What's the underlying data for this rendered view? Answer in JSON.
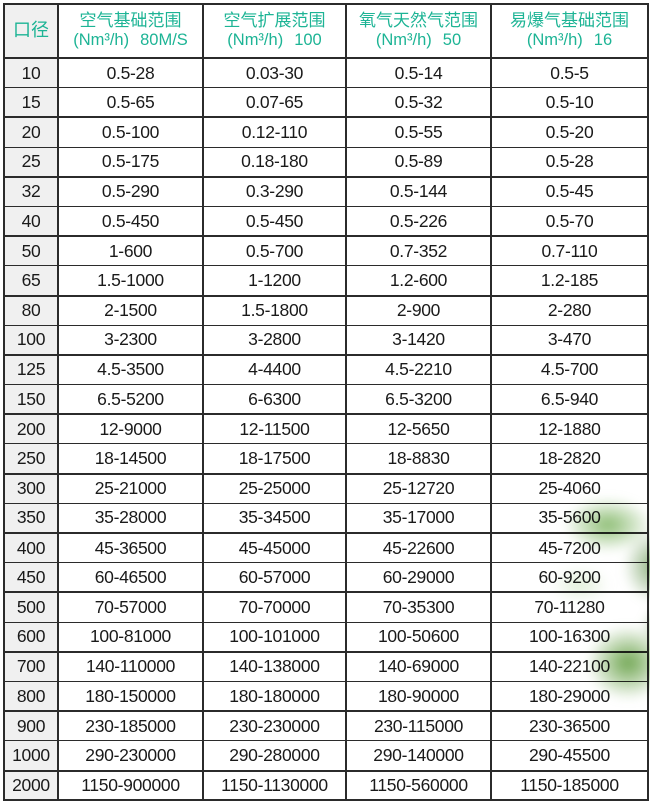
{
  "table": {
    "diameter_header": "口径",
    "columns": [
      {
        "title": "空气基础范围",
        "unit": "(Nm³/h)",
        "value": "80M/S"
      },
      {
        "title": "空气扩展范围",
        "unit": "(Nm³/h)",
        "value": "100"
      },
      {
        "title": "氧气天然气范围",
        "unit": "(Nm³/h)",
        "value": "50"
      },
      {
        "title": "易爆气基础范围",
        "unit": "(Nm³/h)",
        "value": "16"
      }
    ],
    "rows": [
      {
        "diameter": "10",
        "values": [
          "0.5-28",
          "0.03-30",
          "0.5-14",
          "0.5-5"
        ]
      },
      {
        "diameter": "15",
        "values": [
          "0.5-65",
          "0.07-65",
          "0.5-32",
          "0.5-10"
        ]
      },
      {
        "diameter": "20",
        "values": [
          "0.5-100",
          "0.12-110",
          "0.5-55",
          "0.5-20"
        ]
      },
      {
        "diameter": "25",
        "values": [
          "0.5-175",
          "0.18-180",
          "0.5-89",
          "0.5-28"
        ]
      },
      {
        "diameter": "32",
        "values": [
          "0.5-290",
          "0.3-290",
          "0.5-144",
          "0.5-45"
        ]
      },
      {
        "diameter": "40",
        "values": [
          "0.5-450",
          "0.5-450",
          "0.5-226",
          "0.5-70"
        ]
      },
      {
        "diameter": "50",
        "values": [
          "1-600",
          "0.5-700",
          "0.7-352",
          "0.7-110"
        ]
      },
      {
        "diameter": "65",
        "values": [
          "1.5-1000",
          "1-1200",
          "1.2-600",
          "1.2-185"
        ]
      },
      {
        "diameter": "80",
        "values": [
          "2-1500",
          "1.5-1800",
          "2-900",
          "2-280"
        ]
      },
      {
        "diameter": "100",
        "values": [
          "3-2300",
          "3-2800",
          "3-1420",
          "3-470"
        ]
      },
      {
        "diameter": "125",
        "values": [
          "4.5-3500",
          "4-4400",
          "4.5-2210",
          "4.5-700"
        ]
      },
      {
        "diameter": "150",
        "values": [
          "6.5-5200",
          "6-6300",
          "6.5-3200",
          "6.5-940"
        ]
      },
      {
        "diameter": "200",
        "values": [
          "12-9000",
          "12-11500",
          "12-5650",
          "12-1880"
        ]
      },
      {
        "diameter": "250",
        "values": [
          "18-14500",
          "18-17500",
          "18-8830",
          "18-2820"
        ]
      },
      {
        "diameter": "300",
        "values": [
          "25-21000",
          "25-25000",
          "25-12720",
          "25-4060"
        ]
      },
      {
        "diameter": "350",
        "values": [
          "35-28000",
          "35-34500",
          "35-17000",
          "35-5600"
        ]
      },
      {
        "diameter": "400",
        "values": [
          "45-36500",
          "45-45000",
          "45-22600",
          "45-7200"
        ]
      },
      {
        "diameter": "450",
        "values": [
          "60-46500",
          "60-57000",
          "60-29000",
          "60-9200"
        ]
      },
      {
        "diameter": "500",
        "values": [
          "70-57000",
          "70-70000",
          "70-35300",
          "70-11280"
        ]
      },
      {
        "diameter": "600",
        "values": [
          "100-81000",
          "100-101000",
          "100-50600",
          "100-16300"
        ]
      },
      {
        "diameter": "700",
        "values": [
          "140-110000",
          "140-138000",
          "140-69000",
          "140-22100"
        ]
      },
      {
        "diameter": "800",
        "values": [
          "180-150000",
          "180-180000",
          "180-90000",
          "180-29000"
        ]
      },
      {
        "diameter": "900",
        "values": [
          "230-185000",
          "230-230000",
          "230-115000",
          "230-36500"
        ]
      },
      {
        "diameter": "1000",
        "values": [
          "290-230000",
          "290-280000",
          "290-140000",
          "290-45500"
        ]
      },
      {
        "diameter": "2000",
        "values": [
          "1150-900000",
          "1150-1130000",
          "1150-560000",
          "1150-185000"
        ]
      }
    ]
  },
  "colors": {
    "header_text": "#1db495",
    "body_text": "#1a1a1a",
    "diameter_column_bg": "#f0f0f0",
    "border": "#2b2b2b",
    "leaf_green": "#609c3e",
    "background": "#ffffff"
  }
}
